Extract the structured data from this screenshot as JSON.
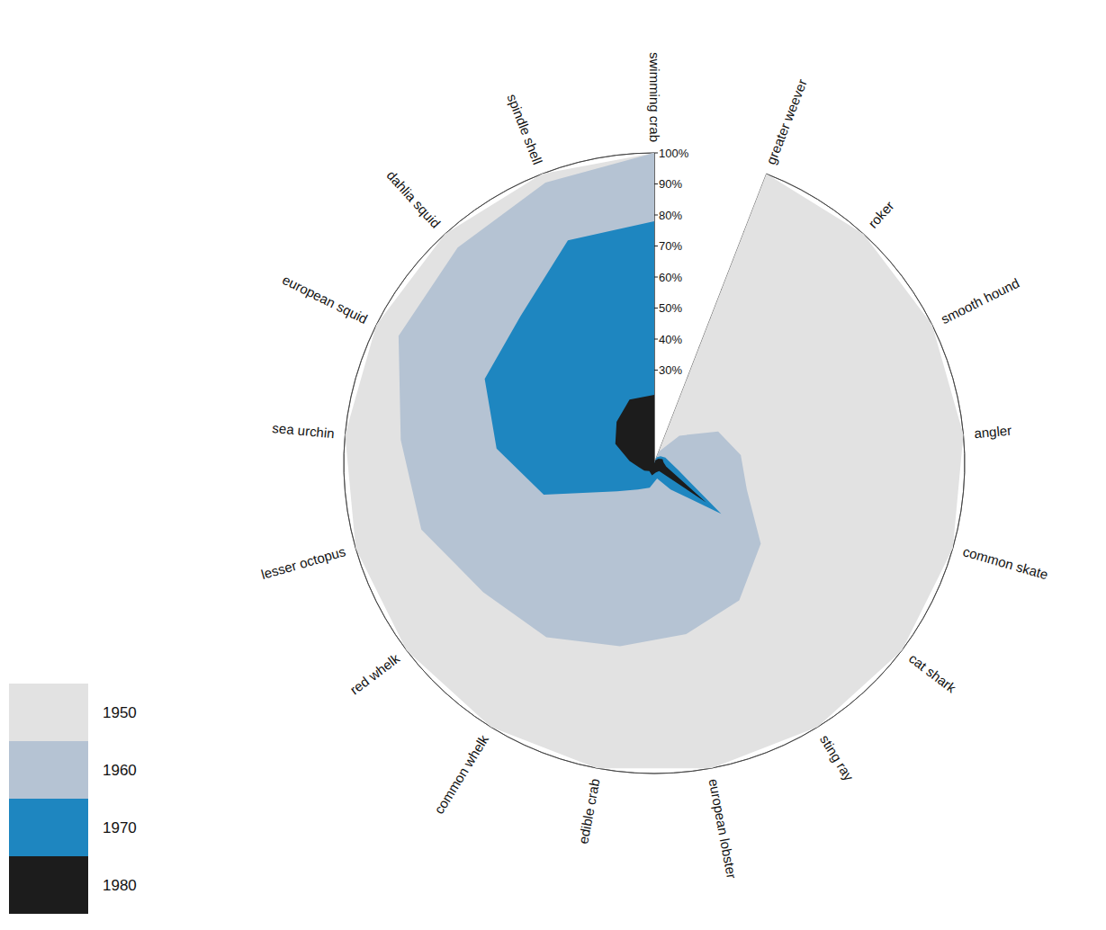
{
  "chart_data": {
    "type": "radial_area",
    "categories": [
      "greater weever",
      "roker",
      "smooth hound",
      "angler",
      "common skate",
      "cat shark",
      "sting ray",
      "european lobster",
      "edible crab",
      "common whelk",
      "red whelk",
      "lesser octopus",
      "sea urchin",
      "european squid",
      "dahlia squid",
      "spindle shell",
      "swimming crab"
    ],
    "series": [
      {
        "name": "1950",
        "color": "#e2e2e2",
        "values": [
          100,
          100,
          100,
          100,
          100,
          100,
          100,
          100,
          100,
          100,
          100,
          100,
          100,
          100,
          100,
          100,
          100
        ]
      },
      {
        "name": "1960",
        "color": "#b5c3d3",
        "values": [
          4,
          12,
          23,
          28,
          31,
          43,
          52,
          56,
          60,
          66,
          69,
          78,
          82,
          92,
          94,
          97,
          100
        ]
      },
      {
        "name": "1970",
        "color": "#1e86c0",
        "values": [
          2,
          3,
          4,
          5,
          8,
          27,
          10,
          5,
          8,
          10,
          15,
          37,
          51,
          61,
          64,
          77,
          78
        ]
      },
      {
        "name": "1980",
        "color": "#1c1c1c",
        "values": [
          1,
          2,
          3,
          3,
          4,
          21,
          3,
          3,
          4,
          3,
          4,
          5,
          8,
          14,
          18,
          22,
          22
        ]
      }
    ],
    "ylim": [
      0,
      100
    ],
    "yticks": [
      {
        "value": 30,
        "label": "30%"
      },
      {
        "value": 40,
        "label": "40%"
      },
      {
        "value": 50,
        "label": "50%"
      },
      {
        "value": 60,
        "label": "60%"
      },
      {
        "value": 70,
        "label": "70%"
      },
      {
        "value": 80,
        "label": "80%"
      },
      {
        "value": 90,
        "label": "90%"
      },
      {
        "value": 100,
        "label": "100%"
      }
    ],
    "grid": true,
    "legend": "bottom-left"
  }
}
